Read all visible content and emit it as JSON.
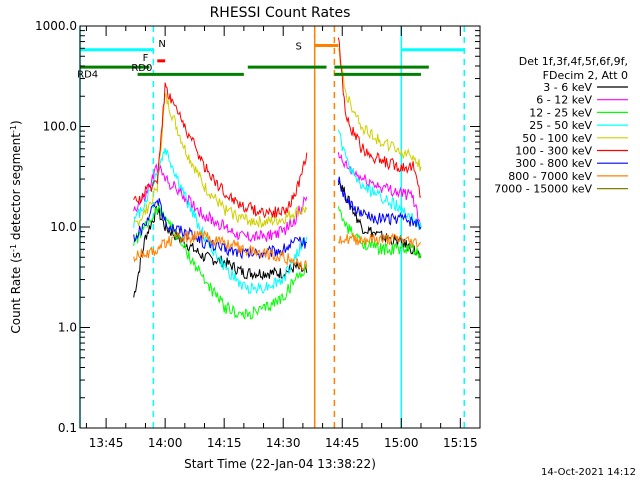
{
  "chart_data": {
    "type": "line",
    "title": "RHESSI Count Rates",
    "xlabel": "Start Time (22-Jan-04 13:38:22)",
    "ylabel_base": "Count Rate (s",
    "ylabel_sup": "-1",
    "ylabel_mid": " detector segment",
    "ylabel_sup2": "-1",
    "ylabel_end": ")",
    "y_scale": "log",
    "ylim": [
      0.1,
      1000
    ],
    "xlim": [
      "13:38:22",
      "15:20:00"
    ],
    "x_ticks": [
      "13:45",
      "14:00",
      "14:15",
      "14:30",
      "14:45",
      "15:00",
      "15:15"
    ],
    "y_ticks": [
      "0.1",
      "1.0",
      "10.0",
      "100.0",
      "1000.0"
    ],
    "legend_header": [
      "Det 1f,3f,4f,5f,6f,9f,",
      "FDecim 2, Att 0"
    ],
    "footer_date": "14-Oct-2021 14:12",
    "series": [
      {
        "name": "3 - 6 keV",
        "color": "#000000",
        "x": [
          "13:52",
          "13:55",
          "13:58",
          "14:00",
          "14:05",
          "14:10",
          "14:15",
          "14:20",
          "14:25",
          "14:30",
          "14:33",
          "14:36",
          "14:44",
          "14:46",
          "14:50",
          "14:55",
          "15:00",
          "15:03",
          "15:05"
        ],
        "values": [
          2.0,
          8,
          15,
          10,
          7,
          5,
          4.5,
          3.5,
          3.5,
          3.5,
          4,
          3.5,
          30,
          20,
          10,
          8,
          7,
          6,
          5
        ]
      },
      {
        "name": "6 - 12 keV",
        "color": "#ff00ff",
        "x": [
          "13:52",
          "13:55",
          "13:58",
          "14:00",
          "14:05",
          "14:10",
          "14:15",
          "14:20",
          "14:25",
          "14:30",
          "14:33",
          "14:36",
          "14:44",
          "14:46",
          "14:50",
          "14:55",
          "15:00",
          "15:03",
          "15:05"
        ],
        "values": [
          15,
          20,
          40,
          30,
          20,
          13,
          10,
          8,
          8,
          9,
          12,
          20,
          50,
          40,
          30,
          25,
          22,
          20,
          10
        ]
      },
      {
        "name": "12 - 25 keV",
        "color": "#00ff00",
        "x": [
          "13:52",
          "13:55",
          "13:58",
          "14:00",
          "14:05",
          "14:10",
          "14:15",
          "14:20",
          "14:25",
          "14:30",
          "14:33",
          "14:36",
          "14:44",
          "14:46",
          "14:50",
          "14:55",
          "15:00",
          "15:03",
          "15:05"
        ],
        "values": [
          7,
          10,
          15,
          13,
          6,
          3,
          1.6,
          1.3,
          1.5,
          2,
          3,
          4,
          15,
          10,
          7,
          6,
          6,
          6,
          5
        ]
      },
      {
        "name": "25 - 50 keV",
        "color": "#00ffff",
        "x": [
          "13:52",
          "13:55",
          "13:58",
          "14:00",
          "14:05",
          "14:10",
          "14:15",
          "14:20",
          "14:25",
          "14:30",
          "14:33",
          "14:36",
          "14:44",
          "14:46",
          "14:50",
          "14:55",
          "15:00",
          "15:03",
          "15:05"
        ],
        "values": [
          11,
          18,
          35,
          60,
          20,
          8,
          4,
          2.5,
          2.5,
          3,
          5,
          8,
          90,
          45,
          25,
          20,
          15,
          12,
          10
        ]
      },
      {
        "name": "50 - 100 keV",
        "color": "#d0d000",
        "x": [
          "13:52",
          "13:55",
          "13:58",
          "14:00",
          "14:05",
          "14:10",
          "14:15",
          "14:20",
          "14:25",
          "14:30",
          "14:33",
          "14:36",
          "14:44",
          "14:46",
          "14:50",
          "14:55",
          "15:00",
          "15:03",
          "15:05"
        ],
        "values": [
          10,
          14,
          25,
          200,
          60,
          25,
          15,
          12,
          11,
          12,
          14,
          15,
          600,
          200,
          100,
          70,
          55,
          50,
          40
        ]
      },
      {
        "name": "100 - 300 keV",
        "color": "#ff0000",
        "x": [
          "13:52",
          "13:55",
          "13:58",
          "14:00",
          "14:05",
          "14:10",
          "14:15",
          "14:20",
          "14:25",
          "14:30",
          "14:33",
          "14:36",
          "14:44",
          "14:46",
          "14:50",
          "14:55",
          "15:00",
          "15:03",
          "15:05"
        ],
        "values": [
          17,
          22,
          30,
          250,
          100,
          40,
          22,
          16,
          14,
          14,
          20,
          55,
          800,
          120,
          60,
          45,
          40,
          40,
          20
        ]
      },
      {
        "name": "300 - 800 keV",
        "color": "#0000ff",
        "x": [
          "13:52",
          "13:55",
          "13:58",
          "14:00",
          "14:05",
          "14:10",
          "14:15",
          "14:20",
          "14:25",
          "14:30",
          "14:33",
          "14:36",
          "14:44",
          "14:46",
          "14:50",
          "14:55",
          "15:00",
          "15:03",
          "15:05"
        ],
        "values": [
          8,
          10,
          20,
          11,
          9,
          7,
          6,
          5.5,
          5.5,
          6,
          7,
          7,
          30,
          18,
          13,
          12,
          12,
          11,
          10
        ]
      },
      {
        "name": "800 - 7000 keV",
        "color": "#ff8000",
        "x": [
          "13:52",
          "13:55",
          "13:58",
          "14:00",
          "14:05",
          "14:10",
          "14:15",
          "14:20",
          "14:25",
          "14:30",
          "14:33",
          "14:36",
          "14:44",
          "14:46",
          "14:50",
          "14:55",
          "15:00",
          "15:03",
          "15:05"
        ],
        "values": [
          5,
          5.5,
          6,
          7,
          8,
          8,
          7,
          6,
          5.5,
          5,
          4.5,
          4,
          8,
          7.5,
          7.5,
          7.5,
          7.5,
          7,
          7
        ]
      },
      {
        "name": "7000 - 15000 keV",
        "color": "#808000",
        "x": [],
        "values": []
      }
    ],
    "grid": false,
    "legend_placement": "right",
    "annotations": {
      "bars": [
        {
          "label": "N",
          "color": "#00ffff",
          "segments": [
            [
              "13:38:22",
              "13:57"
            ],
            [
              "15:00",
              "15:16"
            ]
          ],
          "level": 580
        },
        {
          "label": "F",
          "color": "#ff0000",
          "segments": [
            [
              "13:58",
              "14:00"
            ]
          ],
          "level": 450
        },
        {
          "label": "RD0",
          "color": "#008000",
          "segments": [
            [
              "13:38:22",
              "13:56"
            ],
            [
              "14:21",
              "14:41"
            ],
            [
              "14:43",
              "15:07"
            ]
          ],
          "level": 390
        },
        {
          "label": "RD4",
          "color": "#008000",
          "segments": [
            [
              "13:53",
              "14:20"
            ],
            [
              "14:43",
              "15:05"
            ]
          ],
          "level": 330
        },
        {
          "label": "S",
          "color": "#ff8000",
          "segments": [
            [
              "14:38",
              "14:44"
            ]
          ],
          "level": 640
        }
      ],
      "vlines": [
        {
          "t": "13:38:22",
          "color": "#00ffff",
          "style": "solid"
        },
        {
          "t": "13:57",
          "color": "#00ffff",
          "style": "dashed"
        },
        {
          "t": "14:38",
          "color": "#ff8000",
          "style": "solid"
        },
        {
          "t": "14:43",
          "color": "#ff8000",
          "style": "dashed"
        },
        {
          "t": "15:00",
          "color": "#00ffff",
          "style": "solid"
        },
        {
          "t": "15:16",
          "color": "#00ffff",
          "style": "dashed"
        }
      ],
      "gaps": [
        [
          "14:36",
          "14:44"
        ]
      ]
    }
  }
}
